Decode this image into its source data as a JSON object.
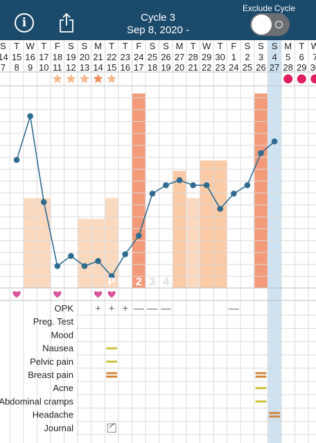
{
  "header": {
    "title": "Cycle 3",
    "date": "Sep 8, 2020 -",
    "exclude_label": "Exclude Cycle",
    "info_icon": "info-icon",
    "share_icon": "share-icon",
    "background": "#1b4a6b"
  },
  "calendar": {
    "dates": [
      "14",
      "15",
      "16",
      "17",
      "18",
      "19",
      "20",
      "21",
      "22",
      "23",
      "24",
      "25",
      "26",
      "27",
      "28",
      "29",
      "30",
      "1",
      "2",
      "3",
      "4",
      "5",
      "6",
      "7"
    ],
    "days_of_week": [
      "S",
      "T",
      "W",
      "T",
      "F",
      "S",
      "S",
      "M",
      "T",
      "T",
      "F",
      "S",
      "S",
      "M",
      "T",
      "W",
      "T",
      "F",
      "S",
      "S",
      "S",
      "M",
      "T",
      "W"
    ],
    "cycle_days": [
      "7",
      "8",
      "9",
      "10",
      "11",
      "12",
      "13",
      "14",
      "15",
      "16",
      "17",
      "18",
      "19",
      "20",
      "21",
      "22",
      "23",
      "24",
      "25",
      "26",
      "27",
      "28",
      "29",
      "30"
    ],
    "selected_date": "4",
    "selected_colors": {
      "highlight": "#c7ddef",
      "text": "#1b4a6b"
    }
  },
  "markers": {
    "stars": [
      {
        "day": "11",
        "type": "star"
      },
      {
        "day": "12",
        "type": "star"
      },
      {
        "day": "13",
        "type": "star"
      },
      {
        "day": "14",
        "type": "sun-star"
      },
      {
        "day": "15",
        "type": "star"
      }
    ],
    "star_color": "#f6b78c",
    "sun_star_color": "#ef8a55",
    "future_dots": [
      "28",
      "29",
      "30"
    ],
    "future_dot_color": "#e0205f"
  },
  "chart_data": {
    "type": "line",
    "x": [
      "8",
      "9",
      "10",
      "11",
      "12",
      "13",
      "14",
      "15",
      "16",
      "17",
      "18",
      "19",
      "20",
      "21",
      "22",
      "23",
      "24",
      "25",
      "26",
      "27"
    ],
    "series": [
      {
        "values": [
          31.6,
          34.2,
          29.1,
          25.3,
          25.9,
          25.3,
          25.6,
          24.7,
          26.0,
          27.1,
          29.6,
          30.1,
          30.4,
          30.1,
          30.1,
          28.7,
          29.6,
          30.1,
          32.0,
          32.7
        ]
      }
    ],
    "line_color": "#2e6b8e",
    "bars": [
      {
        "day": "9",
        "level": 0.43,
        "color": "#fad9bf"
      },
      {
        "day": "10",
        "level": 0.43,
        "color": "#fad9bf"
      },
      {
        "day": "13",
        "level": 0.33,
        "color": "#fad9bf"
      },
      {
        "day": "14",
        "level": 0.33,
        "color": "#fad9bf"
      },
      {
        "day": "15",
        "level": 0.43,
        "color": "#fad9bf"
      },
      {
        "day": "17",
        "level": 0.93,
        "color": "#f29a7a"
      },
      {
        "day": "20",
        "level": 0.56,
        "color": "#fbcaa6"
      },
      {
        "day": "21",
        "level": 0.43,
        "color": "#fbd9c0"
      },
      {
        "day": "22",
        "level": 0.61,
        "color": "#fbcaa6"
      },
      {
        "day": "23",
        "level": 0.61,
        "color": "#fbcaa6"
      },
      {
        "day": "26",
        "level": 0.93,
        "color": "#f29a7a"
      }
    ],
    "fertility_labels": [
      {
        "day": "15",
        "text": "P",
        "color": "#ffffff"
      },
      {
        "day": "16",
        "text": "1",
        "color": "#ffffff"
      },
      {
        "day": "17",
        "text": "2",
        "color": "#ffffff"
      },
      {
        "day": "18",
        "text": "3",
        "color": "#dcdcdc"
      },
      {
        "day": "19",
        "text": "4",
        "color": "#dcdcdc"
      }
    ],
    "hearts": [
      "8",
      "11",
      "14",
      "15"
    ],
    "heart_color": "#d8549c"
  },
  "symptoms": {
    "rows": [
      "OPK",
      "Preg. Test",
      "Mood",
      "Nausea",
      "Pelvic pain",
      "Breast pain",
      "Acne",
      "Abdominal cramps",
      "Headache",
      "Journal"
    ],
    "entries": [
      {
        "row": "OPK",
        "day": "14",
        "symbol": "+"
      },
      {
        "row": "OPK",
        "day": "15",
        "symbol": "+"
      },
      {
        "row": "OPK",
        "day": "16",
        "symbol": "+"
      },
      {
        "row": "OPK",
        "day": "17",
        "symbol": "—"
      },
      {
        "row": "OPK",
        "day": "18",
        "symbol": "—"
      },
      {
        "row": "OPK",
        "day": "19",
        "symbol": "—"
      },
      {
        "row": "OPK",
        "day": "24",
        "symbol": "—"
      },
      {
        "row": "Nausea",
        "day": "15",
        "mark": "single",
        "color": "#c9c23a"
      },
      {
        "row": "Pelvic pain",
        "day": "15",
        "mark": "single",
        "color": "#c9c23a"
      },
      {
        "row": "Breast pain",
        "day": "15",
        "mark": "double",
        "color": "#d0853a"
      },
      {
        "row": "Breast pain",
        "day": "26",
        "mark": "double",
        "color": "#d0853a"
      },
      {
        "row": "Acne",
        "day": "26",
        "mark": "single",
        "color": "#c9c23a"
      },
      {
        "row": "Abdominal cramps",
        "day": "26",
        "mark": "single",
        "color": "#c9c23a"
      },
      {
        "row": "Headache",
        "day": "27",
        "mark": "double",
        "color": "#d0853a"
      },
      {
        "row": "Journal",
        "day": "15",
        "mark": "journal-icon"
      }
    ]
  }
}
